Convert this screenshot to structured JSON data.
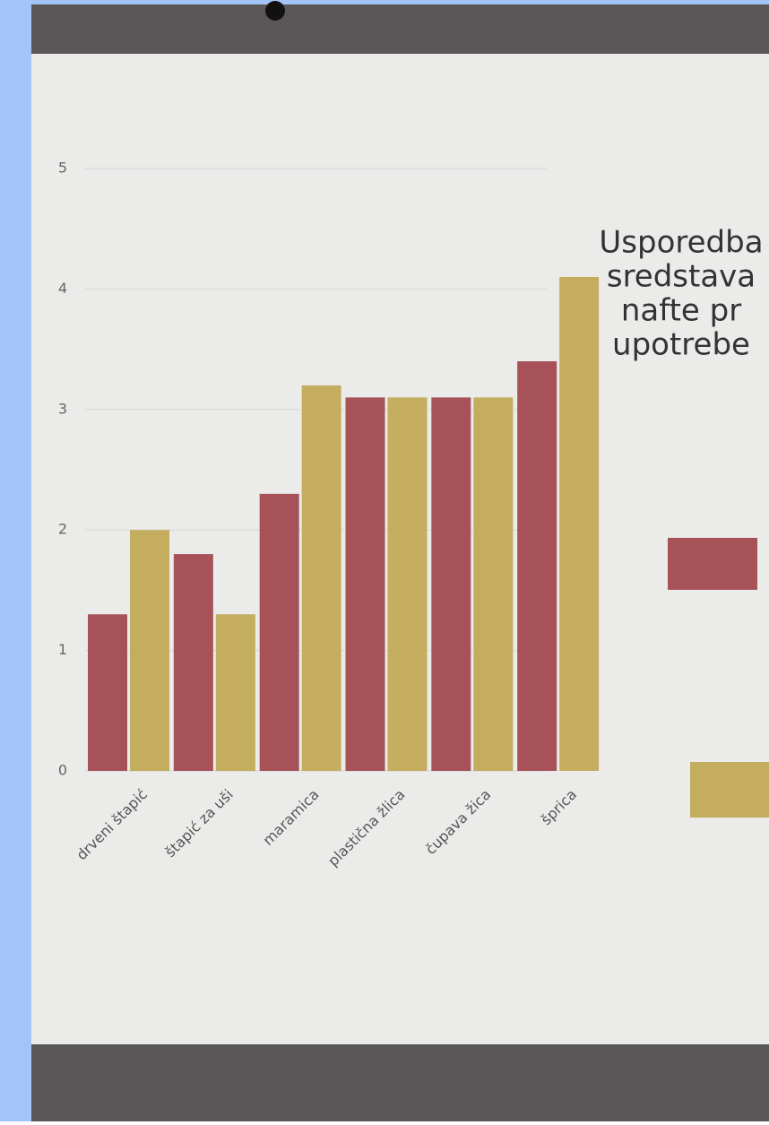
{
  "chart_data": {
    "type": "bar",
    "title_lines": [
      "Usporedba",
      "sredstava",
      "nafte pr",
      "upotrebe"
    ],
    "categories": [
      "drveni štapić",
      "štapić za uši",
      "maramica",
      "plastična žlica",
      "čupava žica",
      "šprica"
    ],
    "series": [
      {
        "color": "#a65258",
        "values": [
          1.3,
          1.8,
          2.3,
          3.1,
          3.1,
          3.4
        ]
      },
      {
        "color": "#c4ad5f",
        "values": [
          2.0,
          1.3,
          3.2,
          3.1,
          3.1,
          4.1
        ]
      }
    ],
    "ylim": [
      0,
      5
    ],
    "yticks": [
      0,
      1,
      2,
      3,
      4,
      5
    ],
    "grid": true
  }
}
